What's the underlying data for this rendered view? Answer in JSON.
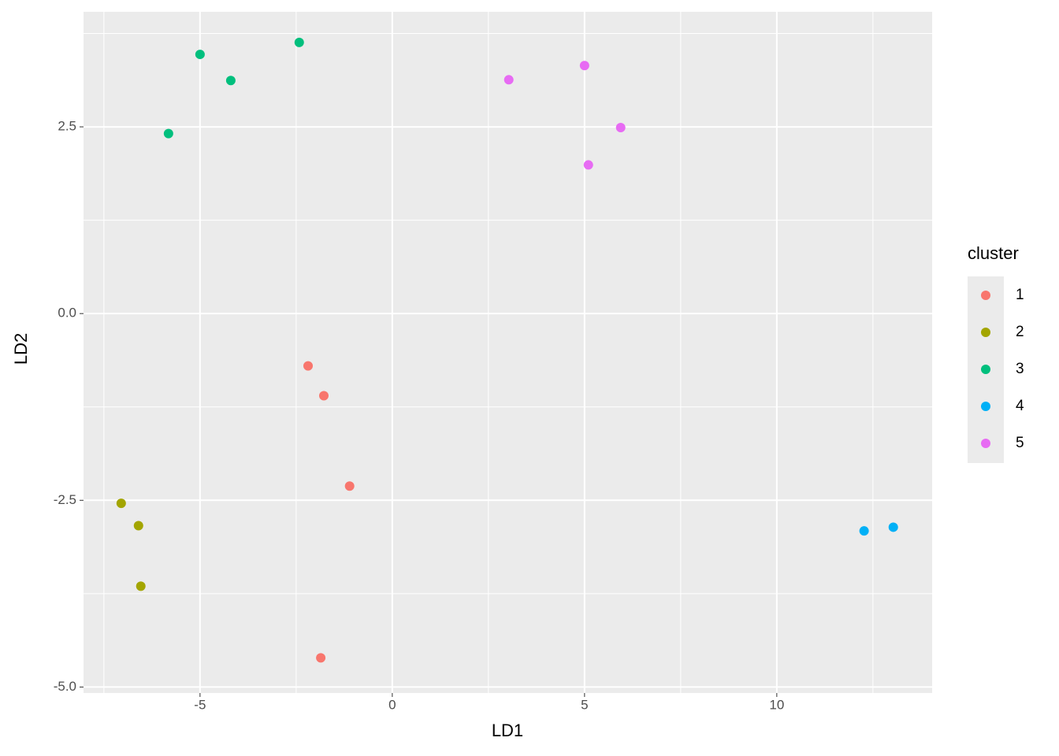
{
  "chart_data": {
    "type": "scatter",
    "x_label": "LD1",
    "y_label": "LD2",
    "legend_title": "cluster",
    "xlim": [
      -8.03,
      14.04
    ],
    "ylim": [
      -5.08,
      4.04
    ],
    "xticks": [
      -5,
      0,
      5,
      10
    ],
    "yticks": [
      {
        "value": -5,
        "label": "-5.0"
      },
      -2.5,
      {
        "value": 0,
        "label": "0.0"
      },
      2.5
    ],
    "grid": true,
    "legend_position": "right",
    "series": [
      {
        "name": "1",
        "color": "#F8766D",
        "x": [
          -2.19,
          -1.78,
          -1.11,
          -1.86
        ],
        "values": [
          -0.7,
          -1.1,
          -2.31,
          -4.61
        ]
      },
      {
        "name": "2",
        "color": "#A3A500",
        "x": [
          -7.05,
          -6.6,
          -6.54
        ],
        "values": [
          -2.54,
          -2.84,
          -3.65
        ]
      },
      {
        "name": "3",
        "color": "#00BF7D",
        "x": [
          -5.0,
          -4.2,
          -2.42,
          -5.82
        ],
        "values": [
          3.47,
          3.12,
          3.63,
          2.41
        ]
      },
      {
        "name": "4",
        "color": "#00B0F6",
        "x": [
          12.27,
          13.03
        ],
        "values": [
          -2.91,
          -2.86
        ]
      },
      {
        "name": "5",
        "color": "#E76BF3",
        "x": [
          3.03,
          5.0,
          5.94,
          5.1
        ],
        "values": [
          3.13,
          3.32,
          2.49,
          1.99
        ]
      }
    ]
  }
}
